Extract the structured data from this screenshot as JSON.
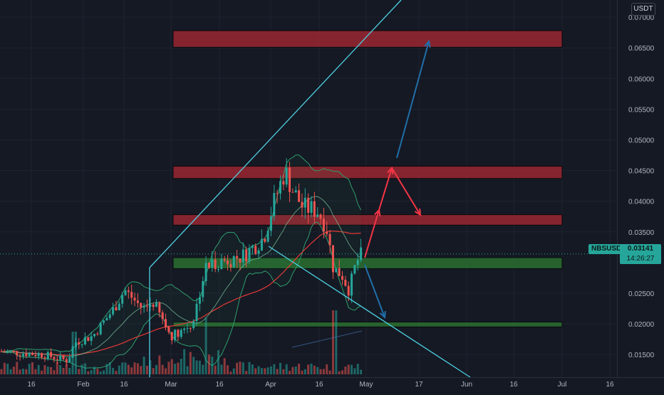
{
  "chart_data": {
    "type": "candlestick",
    "symbol_label": "NBSUSDT",
    "currency_label": "USDT",
    "last_price": "0.03141",
    "countdown": "14:26:27",
    "price_ticks": [
      "0.07000",
      "0.06500",
      "0.06000",
      "0.05500",
      "0.05000",
      "0.04500",
      "0.04000",
      "0.03500",
      "0.02500",
      "0.02000",
      "0.01500"
    ],
    "price_tick_values": [
      0.07,
      0.065,
      0.06,
      0.055,
      0.05,
      0.045,
      0.04,
      0.035,
      0.025,
      0.02,
      0.015
    ],
    "time_ticks": [
      "16",
      "Feb",
      "16",
      "Mar",
      "16",
      "Apr",
      "16",
      "May",
      "17",
      "Jun",
      "16",
      "Jul",
      "16"
    ],
    "y_range": [
      0.0113,
      0.0728
    ],
    "grid": true,
    "zones": [
      {
        "kind": "resistance",
        "top": 0.0678,
        "bottom": 0.0651,
        "color": "#b22833"
      },
      {
        "kind": "resistance",
        "top": 0.0457,
        "bottom": 0.0437,
        "color": "#b22833"
      },
      {
        "kind": "resistance",
        "top": 0.0378,
        "bottom": 0.0361,
        "color": "#b22833"
      },
      {
        "kind": "support",
        "top": 0.0308,
        "bottom": 0.029,
        "color": "#2e7d32"
      },
      {
        "kind": "support",
        "top": 0.0203,
        "bottom": 0.0195,
        "color": "#2e7d32"
      }
    ],
    "colors": {
      "up": "#26a69a",
      "down": "#ef5350",
      "trendline": "#4dd0e1",
      "projection_up": "#f23645",
      "projection_blue": "#1f6fa8",
      "ma": "#e53935",
      "bands": "#2e9e6d"
    }
  }
}
